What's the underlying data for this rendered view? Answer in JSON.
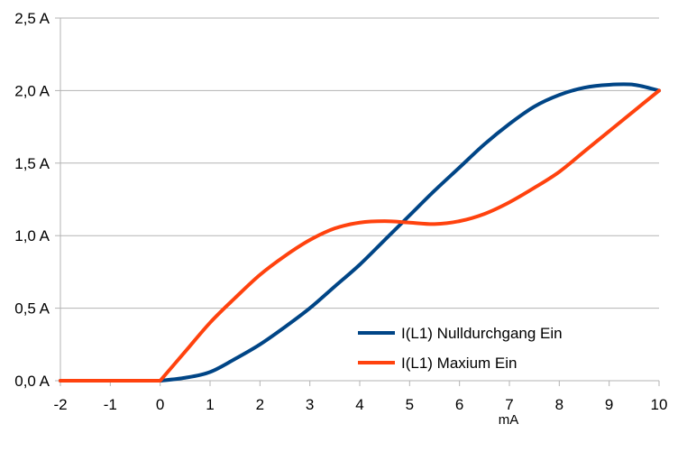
{
  "chart_data": {
    "type": "line",
    "title": "",
    "xlabel": "mA",
    "ylabel": "",
    "xlim": [
      -2,
      10
    ],
    "ylim": [
      0,
      2.5
    ],
    "x_ticks": [
      -2,
      -1,
      0,
      1,
      2,
      3,
      4,
      5,
      6,
      7,
      8,
      9,
      10
    ],
    "x_tick_labels": [
      "-2",
      "-1",
      "0",
      "1",
      "2",
      "3",
      "4",
      "5",
      "6",
      "7",
      "8",
      "9",
      "10"
    ],
    "y_ticks": [
      0,
      0.5,
      1,
      1.5,
      2,
      2.5
    ],
    "y_tick_labels": [
      "0,0 A",
      "0,5 A",
      "1,0 A",
      "1,5 A",
      "2,0 A",
      "2,5 A"
    ],
    "grid": "horizontal",
    "legend_position": "lower-right",
    "series": [
      {
        "name": "I(L1) Nulldurchgang Ein",
        "color": "#004586",
        "x": [
          -2,
          -1,
          0,
          0.5,
          1,
          1.5,
          2,
          2.5,
          3,
          3.5,
          4,
          4.5,
          5,
          5.5,
          6,
          6.5,
          7,
          7.5,
          8,
          8.5,
          9,
          9.5,
          10
        ],
        "y": [
          0,
          0,
          0,
          0.02,
          0.06,
          0.15,
          0.25,
          0.37,
          0.5,
          0.65,
          0.8,
          0.97,
          1.14,
          1.31,
          1.47,
          1.63,
          1.77,
          1.89,
          1.97,
          2.02,
          2.04,
          2.04,
          2.0
        ]
      },
      {
        "name": "I(L1) Maxium Ein",
        "color": "#ff420e",
        "x": [
          -2,
          -1,
          0,
          0.5,
          1,
          1.5,
          2,
          2.5,
          3,
          3.5,
          4,
          4.5,
          5,
          5.5,
          6,
          6.5,
          7,
          7.5,
          8,
          8.5,
          9,
          9.5,
          10
        ],
        "y": [
          0,
          0,
          0,
          0.2,
          0.4,
          0.57,
          0.73,
          0.86,
          0.97,
          1.05,
          1.09,
          1.1,
          1.09,
          1.08,
          1.1,
          1.15,
          1.23,
          1.33,
          1.44,
          1.58,
          1.72,
          1.86,
          2.0
        ]
      }
    ]
  }
}
